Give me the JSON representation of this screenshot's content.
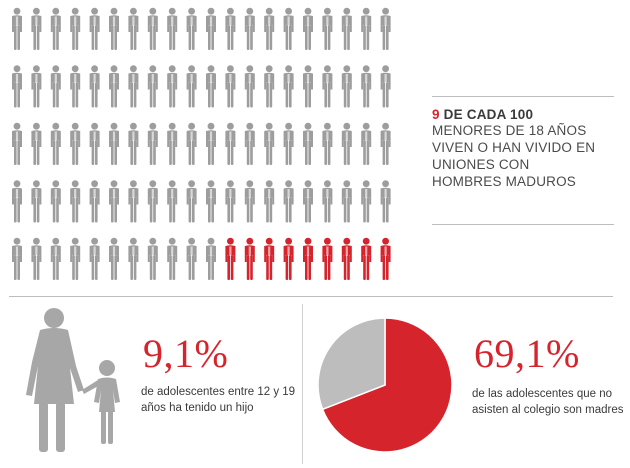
{
  "colors": {
    "accent": "#d6242d",
    "neutral": "#9d9d9d",
    "text": "#3a3a3a"
  },
  "stat": {
    "number": "9",
    "headline": "DE CADA 100",
    "lines": [
      "MENORES DE 18 AÑOS",
      "VIVEN O HAN VIVIDO EN",
      "UNIONES CON",
      "HOMBRES MADUROS"
    ],
    "highlighted_count": 9,
    "total_count": 100
  },
  "left_stat": {
    "percent": "9,1%",
    "lines": [
      "de adolescentes entre 12 y 19",
      "años ha tenido un hijo"
    ]
  },
  "right_stat": {
    "percent": "69,1%",
    "lines": [
      "de las adolescentes que no",
      "asisten al colegio son madres"
    ]
  },
  "chart_data": {
    "type": "pie",
    "values": [
      69.1,
      30.9
    ],
    "colors": [
      "#d6242d",
      "#bdbdbd"
    ]
  }
}
